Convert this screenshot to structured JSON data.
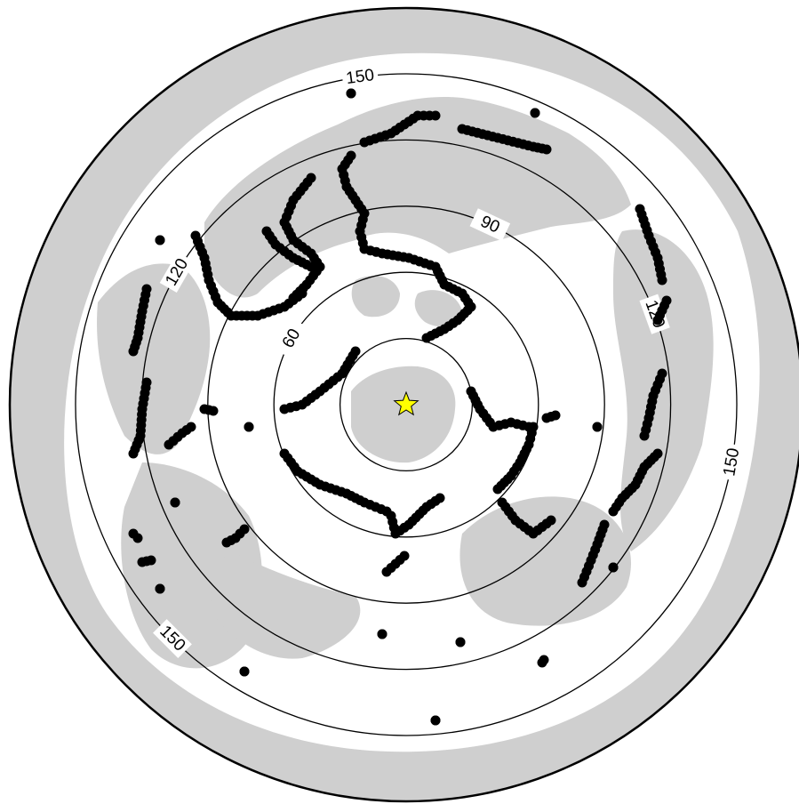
{
  "map": {
    "projection": "azimuthal-equidistant",
    "background_color": "#ffffff",
    "land_color": "#cfcfcf",
    "event_color": "#000000",
    "station_marker": {
      "icon": "star-icon",
      "color": "#ffff00",
      "stroke": "#000000"
    },
    "distance_rings_deg": [
      30,
      60,
      90,
      120,
      150
    ],
    "ring_labels": [
      {
        "text": "60",
        "ring_deg": 60,
        "bearing_deg": 300
      },
      {
        "text": "90",
        "ring_deg": 90,
        "bearing_deg": 25
      },
      {
        "text": "120",
        "ring_deg": 120,
        "bearing_deg": 300
      },
      {
        "text": "120",
        "ring_deg": 120,
        "bearing_deg": 70
      },
      {
        "text": "150",
        "ring_deg": 150,
        "bearing_deg": 352
      },
      {
        "text": "150",
        "ring_deg": 150,
        "bearing_deg": 100
      },
      {
        "text": "150",
        "ring_deg": 150,
        "bearing_deg": 225
      }
    ]
  }
}
